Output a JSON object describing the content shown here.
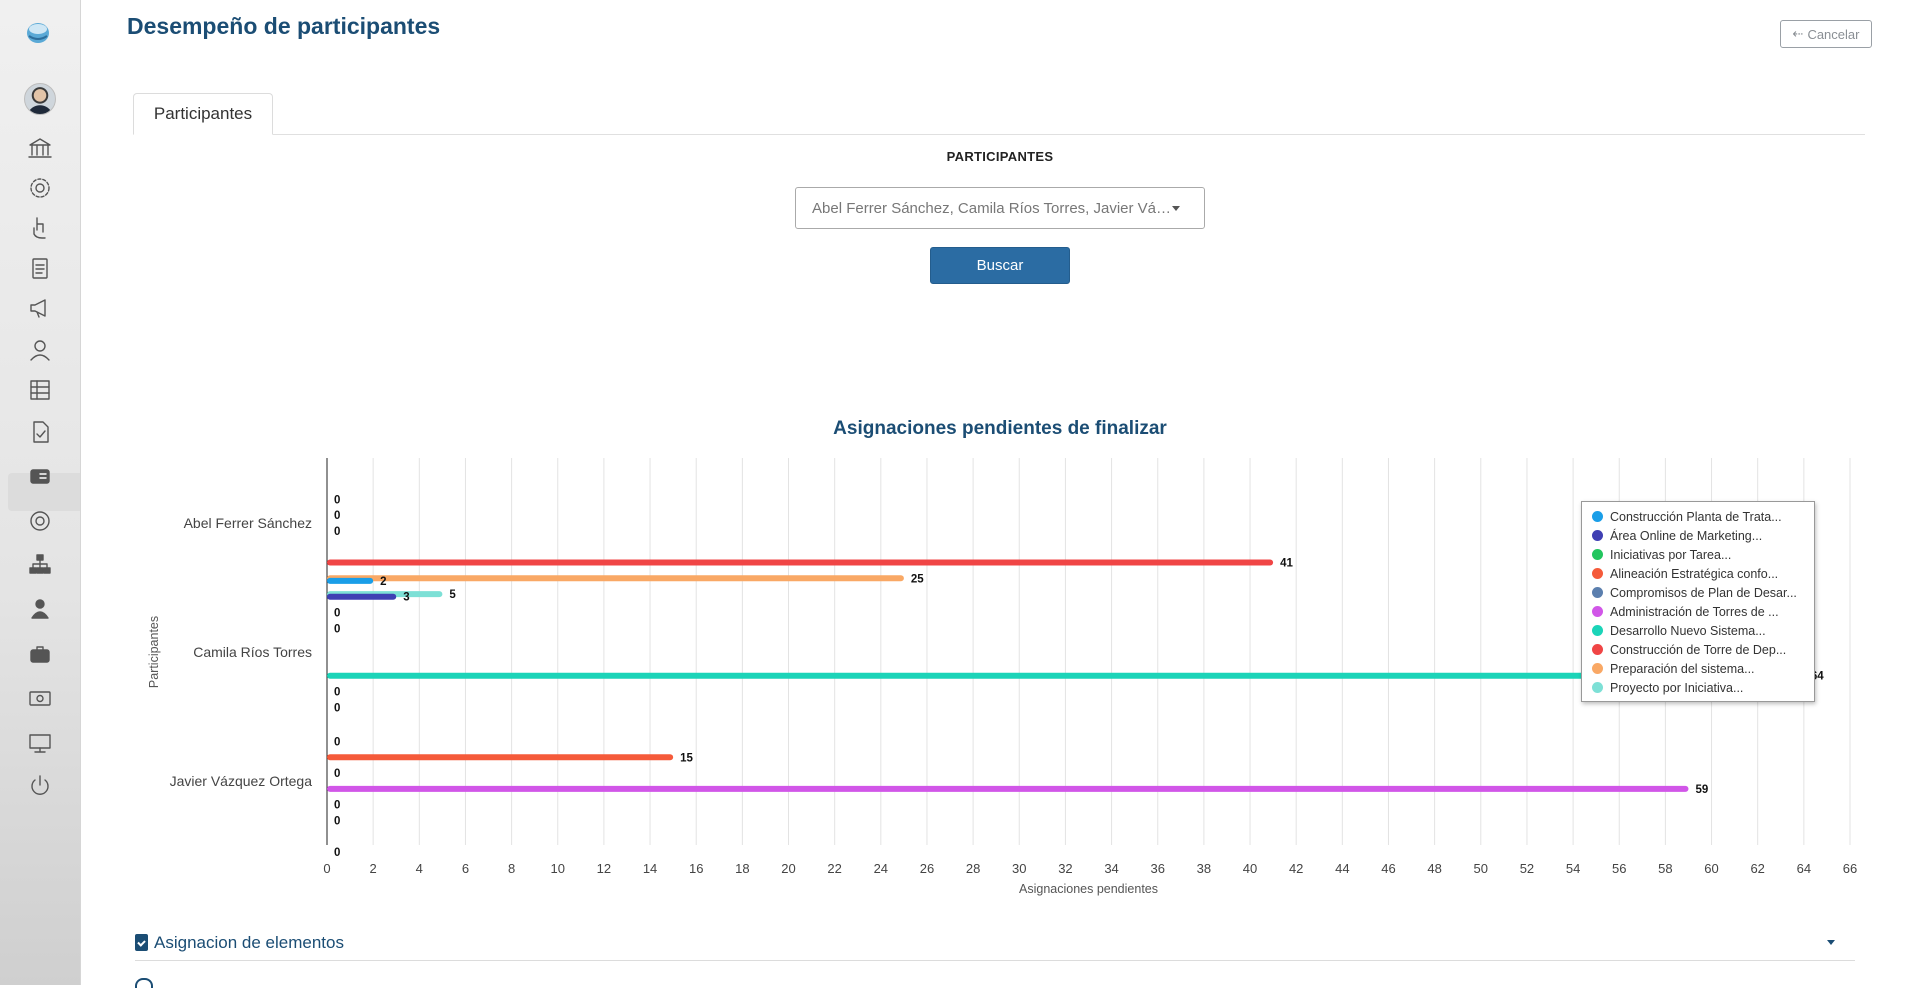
{
  "header": {
    "title": "Desempeño de participantes",
    "cancel_label": "Cancelar"
  },
  "sidebar": {
    "items": [
      {
        "icon": "bank-icon"
      },
      {
        "icon": "gear-icon"
      },
      {
        "icon": "hand-pointer-icon"
      },
      {
        "icon": "clipboard-icon"
      },
      {
        "icon": "megaphone-icon"
      },
      {
        "icon": "user-icon"
      },
      {
        "icon": "grid-list-icon"
      },
      {
        "icon": "file-check-icon"
      },
      {
        "icon": "id-card-icon",
        "active": true
      },
      {
        "icon": "target-icon"
      },
      {
        "icon": "sitemap-icon"
      },
      {
        "icon": "user-tie-icon"
      },
      {
        "icon": "briefcase-icon"
      },
      {
        "icon": "money-settings-icon"
      },
      {
        "icon": "monitor-icon"
      },
      {
        "icon": "power-icon"
      }
    ]
  },
  "tabs": [
    {
      "label": "Participantes"
    }
  ],
  "filter": {
    "label": "PARTICIPANTES",
    "selected_value": "Abel Ferrer Sánchez, Camila Ríos Torres, Javier Vázquez Ortega",
    "search_label": "Buscar"
  },
  "accordion": {
    "title": "Asignacion de elementos"
  },
  "colors": {
    "title": "#1b4d74",
    "button": "#2b6ca3"
  },
  "chart_data": {
    "type": "bar",
    "orientation": "horizontal",
    "title": "Asignaciones pendientes de finalizar",
    "xlabel": "Asignaciones pendientes",
    "ylabel": "Participantes",
    "xlim": [
      0,
      66
    ],
    "x_ticks": [
      0,
      2,
      4,
      6,
      8,
      10,
      12,
      14,
      16,
      18,
      20,
      22,
      24,
      26,
      28,
      30,
      32,
      34,
      36,
      38,
      40,
      42,
      44,
      46,
      48,
      50,
      52,
      54,
      56,
      58,
      60,
      62,
      64,
      66
    ],
    "grid": true,
    "legend_position": "right",
    "categories": [
      "Abel Ferrer Sánchez",
      "Camila Ríos Torres",
      "Javier Vázquez Ortega"
    ],
    "series": [
      {
        "name": "Construcción Planta de Trata...",
        "color": "#1a9ee8",
        "values": [
          null,
          2,
          null
        ]
      },
      {
        "name": "Área Online de Marketing...",
        "color": "#3f3fb3",
        "values": [
          null,
          3,
          null
        ]
      },
      {
        "name": "Iniciativas por Tarea...",
        "color": "#22c55e",
        "values": [
          null,
          0,
          0
        ]
      },
      {
        "name": "Alineación Estratégica confo...",
        "color": "#f55a3a",
        "values": [
          0,
          0,
          15
        ]
      },
      {
        "name": "Compromisos de Plan de Desar...",
        "color": "#5b7fae",
        "values": [
          0,
          null,
          0
        ]
      },
      {
        "name": "Administración de Torres de ...",
        "color": "#d156e8",
        "values": [
          0,
          null,
          59
        ]
      },
      {
        "name": "Desarrollo Nuevo Sistema...",
        "color": "#1bd4b8",
        "values": [
          null,
          64,
          0
        ]
      },
      {
        "name": "Construcción de Torre de Dep...",
        "color": "#f04545",
        "values": [
          41,
          0,
          0
        ]
      },
      {
        "name": "Preparación del sistema...",
        "color": "#f9a865",
        "values": [
          25,
          0,
          null
        ]
      },
      {
        "name": "Proyecto por Iniciativa...",
        "color": "#7de0d6",
        "values": [
          5,
          null,
          0
        ]
      }
    ]
  }
}
